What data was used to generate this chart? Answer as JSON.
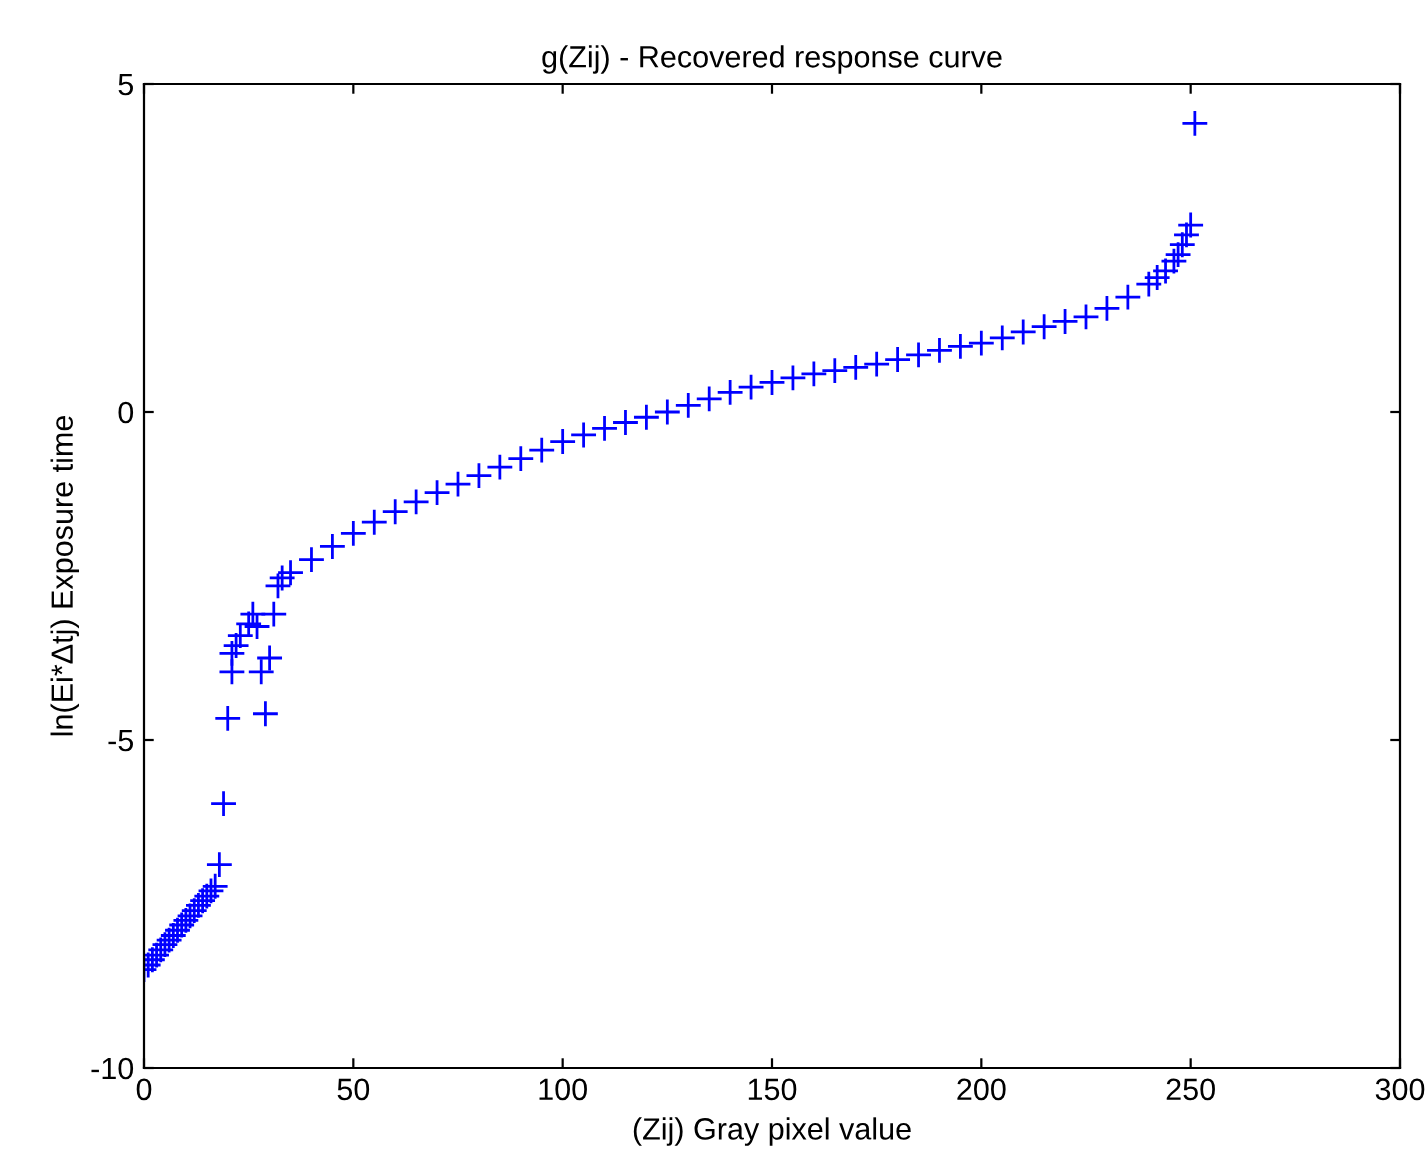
{
  "chart_data": {
    "type": "scatter",
    "title": "g(Zij) - Recovered response curve",
    "xlabel": "(Zij) Gray pixel value",
    "ylabel": "ln(Ei*Δtj) Exposure time",
    "xlim": [
      0,
      300
    ],
    "ylim": [
      -10,
      5
    ],
    "xticks": [
      0,
      50,
      100,
      150,
      200,
      250,
      300
    ],
    "yticks": [
      -10,
      -5,
      0,
      5
    ],
    "grid": false,
    "marker": "cross",
    "series": [
      {
        "color": "#0000ff",
        "x": [
          0,
          1,
          2,
          3,
          4,
          5,
          6,
          7,
          8,
          9,
          10,
          11,
          12,
          13,
          14,
          15,
          16,
          17,
          18,
          19,
          20,
          21,
          21,
          22,
          23,
          25,
          26,
          27,
          28,
          30,
          29,
          31,
          32,
          33,
          35,
          40,
          45,
          50,
          55,
          60,
          65,
          70,
          75,
          80,
          85,
          90,
          95,
          100,
          105,
          110,
          115,
          120,
          125,
          130,
          135,
          140,
          145,
          150,
          155,
          160,
          165,
          170,
          175,
          180,
          185,
          190,
          195,
          200,
          205,
          210,
          215,
          220,
          225,
          230,
          235,
          240,
          242,
          244,
          246,
          247,
          248,
          249,
          250,
          251
        ],
        "values": [
          -8.5,
          -8.43,
          -8.35,
          -8.28,
          -8.2,
          -8.12,
          -8.05,
          -7.98,
          -7.9,
          -7.82,
          -7.75,
          -7.68,
          -7.6,
          -7.52,
          -7.45,
          -7.38,
          -7.3,
          -7.23,
          -6.9,
          -5.97,
          -4.67,
          -3.96,
          -3.68,
          -3.56,
          -3.41,
          -3.23,
          -3.08,
          -3.27,
          -3.96,
          -3.75,
          -4.6,
          -3.08,
          -2.65,
          -2.53,
          -2.45,
          -2.25,
          -2.05,
          -1.85,
          -1.68,
          -1.52,
          -1.37,
          -1.23,
          -1.1,
          -0.97,
          -0.84,
          -0.71,
          -0.58,
          -0.45,
          -0.35,
          -0.25,
          -0.16,
          -0.08,
          0.0,
          0.1,
          0.2,
          0.3,
          0.38,
          0.45,
          0.52,
          0.58,
          0.63,
          0.68,
          0.73,
          0.8,
          0.87,
          0.94,
          1.0,
          1.05,
          1.13,
          1.22,
          1.3,
          1.38,
          1.45,
          1.58,
          1.75,
          1.95,
          2.05,
          2.15,
          2.3,
          2.4,
          2.55,
          2.7,
          2.85,
          4.4
        ]
      }
    ]
  }
}
